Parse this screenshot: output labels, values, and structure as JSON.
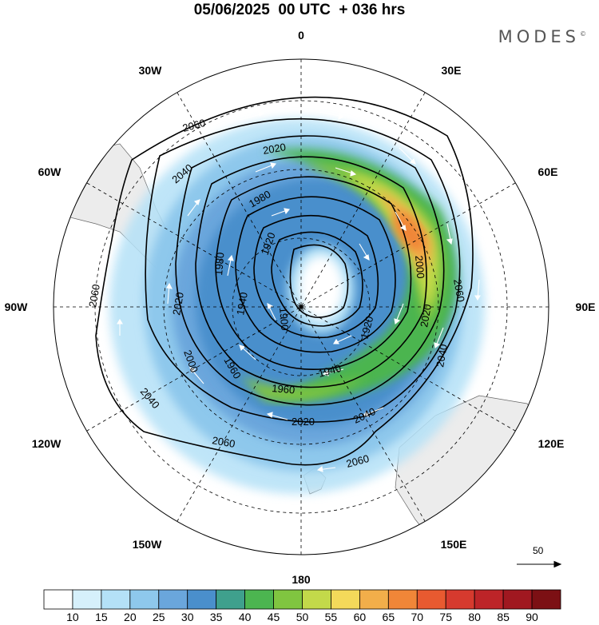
{
  "title": "05/06/2025  00 UTC  + 036 hrs",
  "brand": "MODES",
  "brand_mark": "©",
  "longitude_labels": {
    "lon_0": "0",
    "lon_30e": "30E",
    "lon_60e": "60E",
    "lon_90e": "90E",
    "lon_120e": "120E",
    "lon_150e": "150E",
    "lon_180": "180",
    "lon_150w": "150W",
    "lon_120w": "120W",
    "lon_90w": "90W",
    "lon_60w": "60W",
    "lon_30w": "30W"
  },
  "contour_labels": {
    "c2060": "2060",
    "c2040": "2040",
    "c2020": "2020",
    "c2000": "2000",
    "c1980": "1980",
    "c1960": "1960",
    "c1940": "1940",
    "c1920": "1920",
    "c1900": "1900"
  },
  "vector_reference": "50",
  "colorbar": {
    "levels": [
      "10",
      "15",
      "20",
      "25",
      "30",
      "35",
      "40",
      "45",
      "50",
      "55",
      "60",
      "65",
      "70",
      "75",
      "80",
      "85",
      "90"
    ],
    "colors": [
      "#ffffff",
      "#d6f0fb",
      "#b4e1f7",
      "#8ec8ec",
      "#6aa6dc",
      "#4a8fcc",
      "#3fa08d",
      "#4cb550",
      "#80c540",
      "#c3d94a",
      "#f4d95a",
      "#f2ae4a",
      "#f08638",
      "#e85a30",
      "#d63a2e",
      "#bd2428",
      "#a01820",
      "#7c1014"
    ]
  },
  "colors": {
    "land": "#ececec",
    "coast": "#666666",
    "contour": "#000000",
    "arrow": "#ffffff"
  }
}
